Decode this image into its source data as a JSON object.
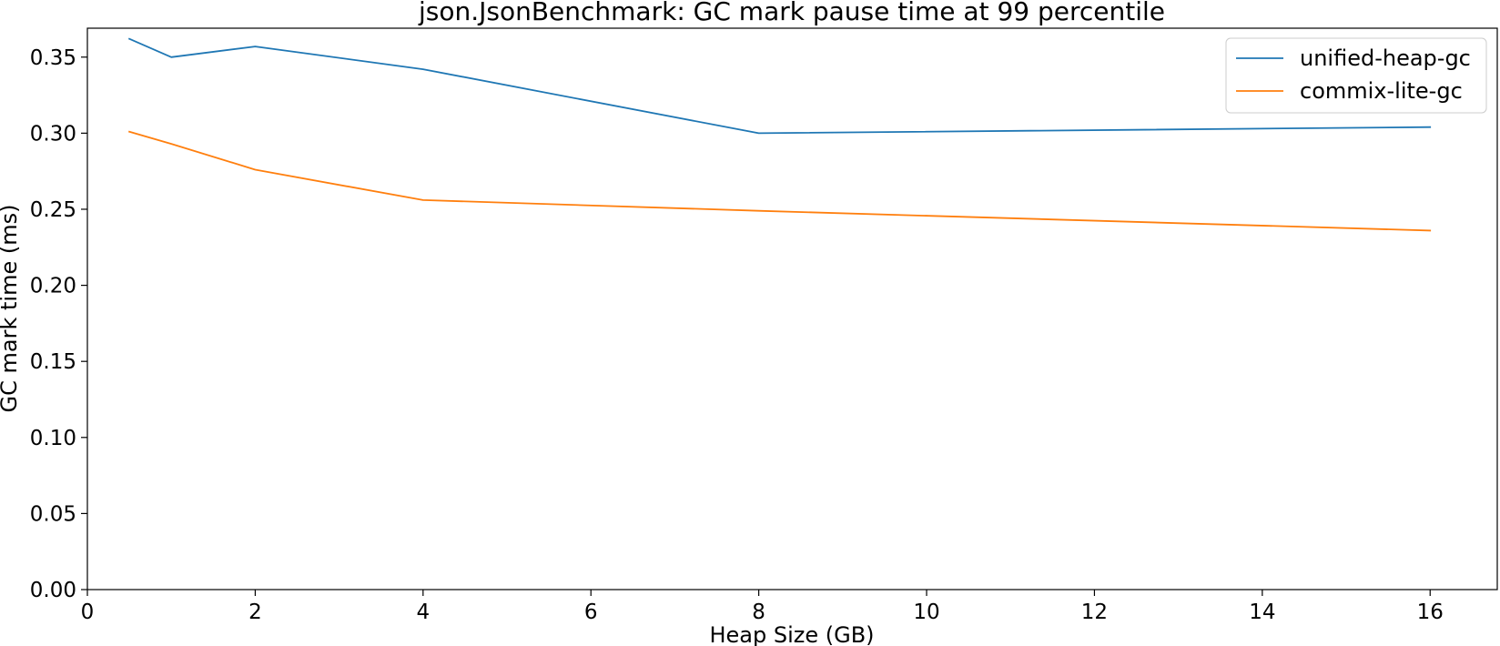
{
  "chart_data": {
    "type": "line",
    "title": "json.JsonBenchmark: GC mark pause time at 99 percentile",
    "xlabel": "Heap Size (GB)",
    "ylabel": "GC mark time (ms)",
    "xlim": [
      0,
      16.8
    ],
    "ylim": [
      0,
      0.369
    ],
    "x_ticks": [
      0,
      2,
      4,
      6,
      8,
      10,
      12,
      14,
      16
    ],
    "x_tick_labels": [
      "0",
      "2",
      "4",
      "6",
      "8",
      "10",
      "12",
      "14",
      "16"
    ],
    "y_ticks": [
      0.0,
      0.05,
      0.1,
      0.15,
      0.2,
      0.25,
      0.3,
      0.35
    ],
    "y_tick_labels": [
      "0.00",
      "0.05",
      "0.10",
      "0.15",
      "0.20",
      "0.25",
      "0.30",
      "0.35"
    ],
    "grid": false,
    "legend_position": "top-right",
    "series": [
      {
        "name": "unified-heap-gc",
        "color": "#1f77b4",
        "x": [
          0.5,
          1,
          2,
          4,
          8,
          16
        ],
        "values": [
          0.362,
          0.35,
          0.357,
          0.342,
          0.3,
          0.304
        ]
      },
      {
        "name": "commix-lite-gc",
        "color": "#ff7f0e",
        "x": [
          0.5,
          1,
          2,
          4,
          8,
          16
        ],
        "values": [
          0.301,
          0.293,
          0.276,
          0.256,
          0.249,
          0.236
        ]
      }
    ]
  }
}
